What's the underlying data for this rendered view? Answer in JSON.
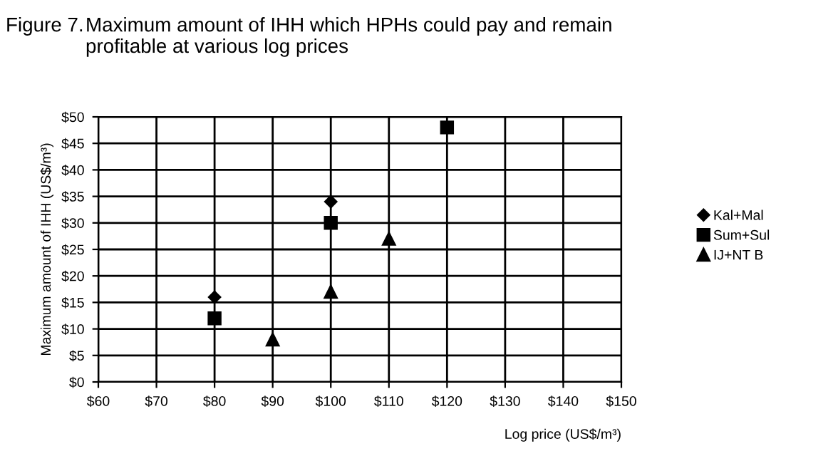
{
  "chart_data": {
    "type": "scatter",
    "title": "Maximum amount of IHH which HPHs could pay and remain\nprofitable at various log prices",
    "annotations": [
      "Figure 7."
    ],
    "xlabel": "Log price (US$/m³)",
    "ylabel": "Maximum amount of IHH (US$/m³)",
    "series": [
      {
        "name": "Kal+Mal",
        "color": "#000000",
        "marker": "diamond",
        "x": [
          80,
          100
        ],
        "values": [
          16,
          34
        ]
      },
      {
        "name": "Sum+Sul",
        "color": "#000000",
        "marker": "square",
        "x": [
          80,
          100,
          120
        ],
        "values": [
          12,
          30,
          48
        ]
      },
      {
        "name": "IJ+NT B",
        "color": "#000000",
        "marker": "triangle",
        "x": [
          90,
          100,
          110
        ],
        "values": [
          8,
          17,
          27
        ]
      }
    ],
    "xlim": [
      60,
      150
    ],
    "xticks": [
      {
        "value": 60,
        "label": "$60"
      },
      {
        "value": 70,
        "label": "$70"
      },
      {
        "value": 80,
        "label": "$80"
      },
      {
        "value": 90,
        "label": "$90"
      },
      {
        "value": 100,
        "label": "$100"
      },
      {
        "value": 110,
        "label": "$110"
      },
      {
        "value": 120,
        "label": "$120"
      },
      {
        "value": 130,
        "label": "$130"
      },
      {
        "value": 140,
        "label": "$140"
      },
      {
        "value": 150,
        "label": "$150"
      }
    ],
    "ylim": [
      0,
      50
    ],
    "yticks": [
      {
        "value": 0,
        "label": "$0"
      },
      {
        "value": 5,
        "label": "$5"
      },
      {
        "value": 10,
        "label": "$10"
      },
      {
        "value": 15,
        "label": "$15"
      },
      {
        "value": 20,
        "label": "$20"
      },
      {
        "value": 25,
        "label": "$25"
      },
      {
        "value": 30,
        "label": "$30"
      },
      {
        "value": 35,
        "label": "$35"
      },
      {
        "value": 40,
        "label": "$40"
      },
      {
        "value": 45,
        "label": "$45"
      },
      {
        "value": 50,
        "label": "$50"
      }
    ],
    "grid": true,
    "legend": "right"
  }
}
